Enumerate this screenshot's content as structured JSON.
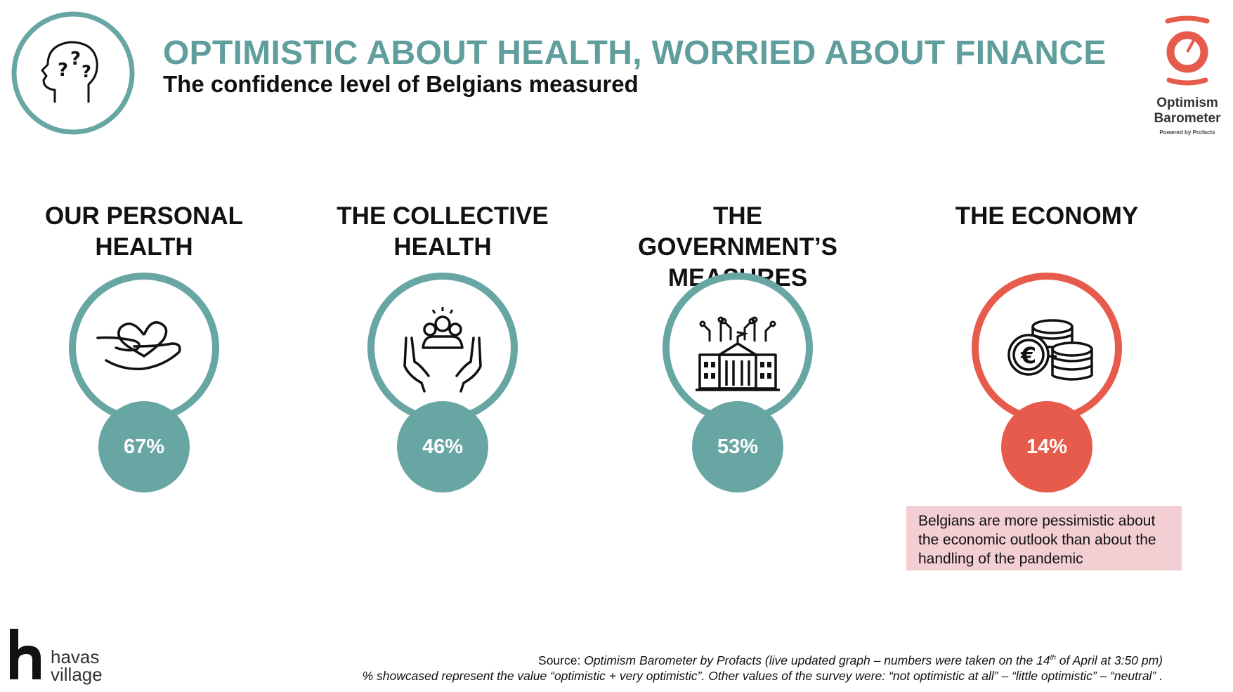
{
  "header": {
    "title": "OPTIMISTIC ABOUT HEALTH, WORRIED ABOUT FINANCE",
    "subtitle": "The confidence level of Belgians measured",
    "head_icon": "head-question-marks-icon"
  },
  "brand_logo": {
    "word1": "Optimism",
    "word2": "Barometer",
    "powered_by": "Powered by Profacts",
    "icon": "optimism-barometer-logo-icon"
  },
  "colors": {
    "teal": "#68a6a4",
    "red": "#e65b4b",
    "title_teal": "#5f9e9c",
    "note_bg": "#f3cfd3"
  },
  "items": [
    {
      "title_line1": "OUR PERSONAL",
      "title_line2": "HEALTH",
      "value": "67%",
      "icon": "hand-heart-icon",
      "color": "#68a6a4"
    },
    {
      "title_line1": "THE COLLECTIVE",
      "title_line2": "HEALTH",
      "value": "46%",
      "icon": "hands-people-icon",
      "color": "#68a6a4"
    },
    {
      "title_line1": "THE GOVERNMENT’S",
      "title_line2": "MEASURES",
      "value": "53%",
      "icon": "government-building-icon",
      "color": "#68a6a4"
    },
    {
      "title_line1": "THE ECONOMY",
      "title_line2": "",
      "value": "14%",
      "icon": "euro-coins-icon",
      "color": "#e65b4b"
    }
  ],
  "note": {
    "line1": "Belgians are more pessimistic about",
    "line2": "the economic outlook than about the",
    "line3": "handling of the pandemic"
  },
  "footer": {
    "havas_word1": "havas",
    "havas_word2": "village",
    "havas_icon": "havas-h-logo-icon",
    "source_label": "Source: ",
    "source_text_a": "Optimism Barometer by Profacts (live updated graph – numbers were taken on the 14",
    "source_sup": "th",
    "source_text_b": " of April at 3:50 pm)",
    "source_line2": "% showcased represent the value “optimistic + very optimistic”. Other values of the survey were: “not optimistic at all” – “little optimistic” – “neutral” ."
  }
}
